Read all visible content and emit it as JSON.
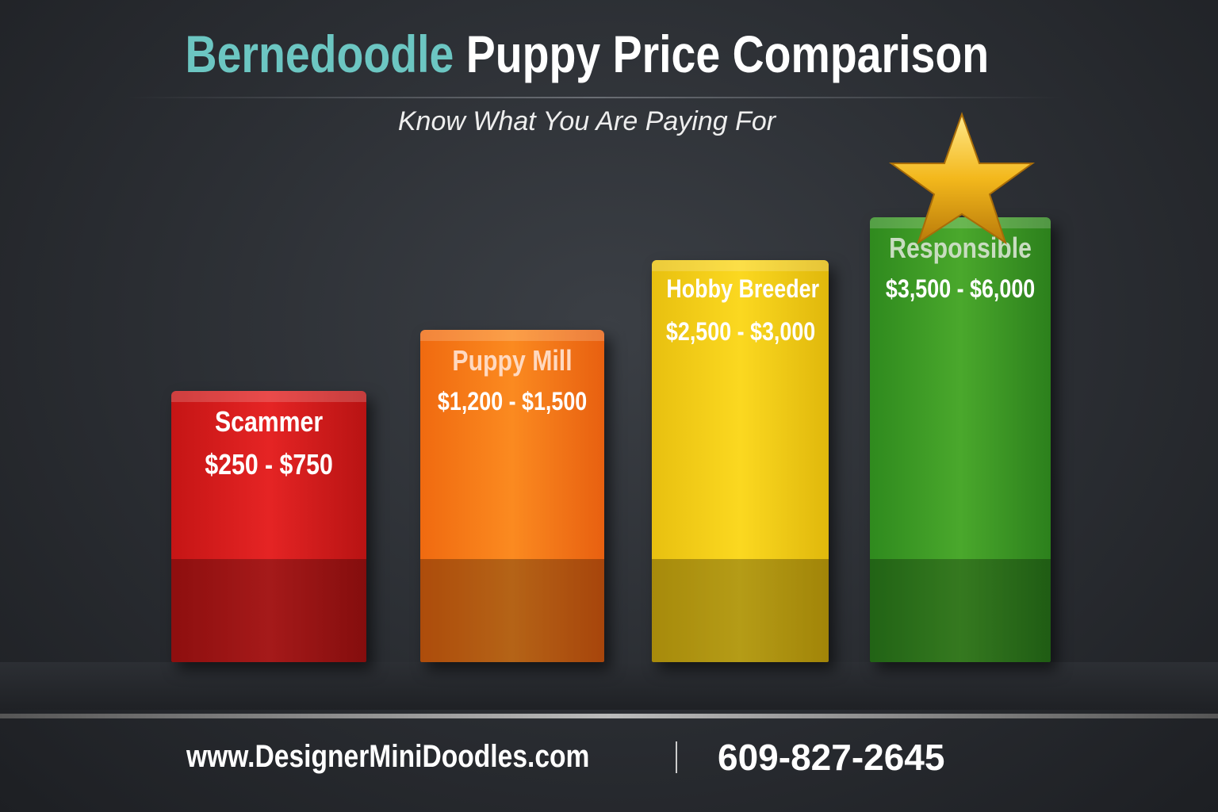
{
  "title": {
    "highlight": "Bernedoodle",
    "rest": "Puppy Price Comparison"
  },
  "subtitle": "Know What You Are Paying For",
  "tiers": [
    {
      "label": "Scammer",
      "price": "$250 - $750"
    },
    {
      "label": "Puppy Mill",
      "price": "$1,200 - $1,500"
    },
    {
      "label": "Hobby Breeder",
      "price": "$2,500 - $3,000"
    },
    {
      "label": "Responsible",
      "price": "$3,500 - $6,000"
    }
  ],
  "footer": {
    "website": "www.DesignerMiniDoodles.com",
    "phone": "609-827-2645"
  }
}
